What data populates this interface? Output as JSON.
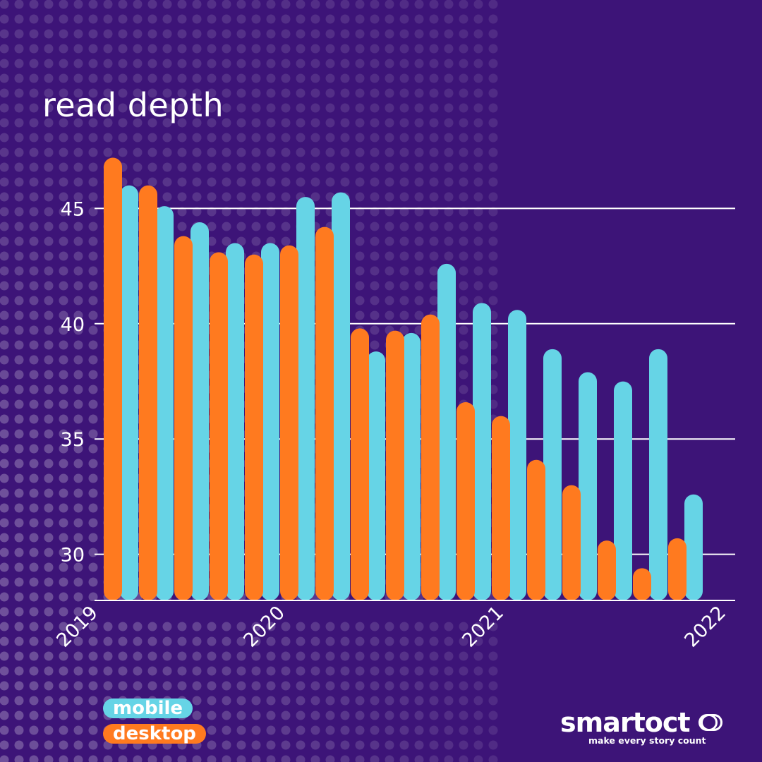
{
  "title": "read depth",
  "legend": [
    {
      "key": "mobile",
      "label": "mobile",
      "color": "#66d4e6"
    },
    {
      "key": "desktop",
      "label": "desktop",
      "color": "#ff7a1f"
    }
  ],
  "brand": {
    "name": "smartocto",
    "name_word": "smartoct",
    "tagline": "make every story count"
  },
  "colors": {
    "background": "#3d1478",
    "gridline": "#ffffff",
    "text": "#ffffff"
  },
  "chart_data": {
    "type": "bar",
    "title": "read depth",
    "xlabel": "",
    "ylabel": "",
    "ylim": [
      28,
      47
    ],
    "yticks": [
      30,
      35,
      40,
      45
    ],
    "x_axis": {
      "type": "date",
      "ticks": [
        "2019",
        "2020",
        "2021",
        "2022"
      ]
    },
    "grid": true,
    "legend_position": "bottom-left",
    "categories": [
      "2019-01",
      "2019-03",
      "2019-05",
      "2019-07",
      "2019-09",
      "2019-11",
      "2020-01",
      "2020-03",
      "2020-05",
      "2020-07",
      "2020-09",
      "2020-11",
      "2021-01",
      "2021-03",
      "2021-05",
      "2021-07",
      "2021-09"
    ],
    "series": [
      {
        "name": "mobile",
        "color": "#66d4e6",
        "values": [
          45.6,
          44.7,
          44.0,
          43.1,
          43.1,
          45.1,
          45.3,
          38.4,
          39.2,
          42.2,
          40.5,
          40.2,
          38.5,
          37.5,
          37.1,
          38.5,
          32.2
        ]
      },
      {
        "name": "desktop",
        "color": "#ff7a1f",
        "values": [
          46.8,
          45.6,
          43.4,
          42.7,
          42.6,
          43.0,
          43.8,
          39.4,
          39.3,
          40.0,
          36.2,
          35.6,
          33.7,
          32.6,
          30.2,
          29.0,
          30.3
        ]
      }
    ]
  }
}
